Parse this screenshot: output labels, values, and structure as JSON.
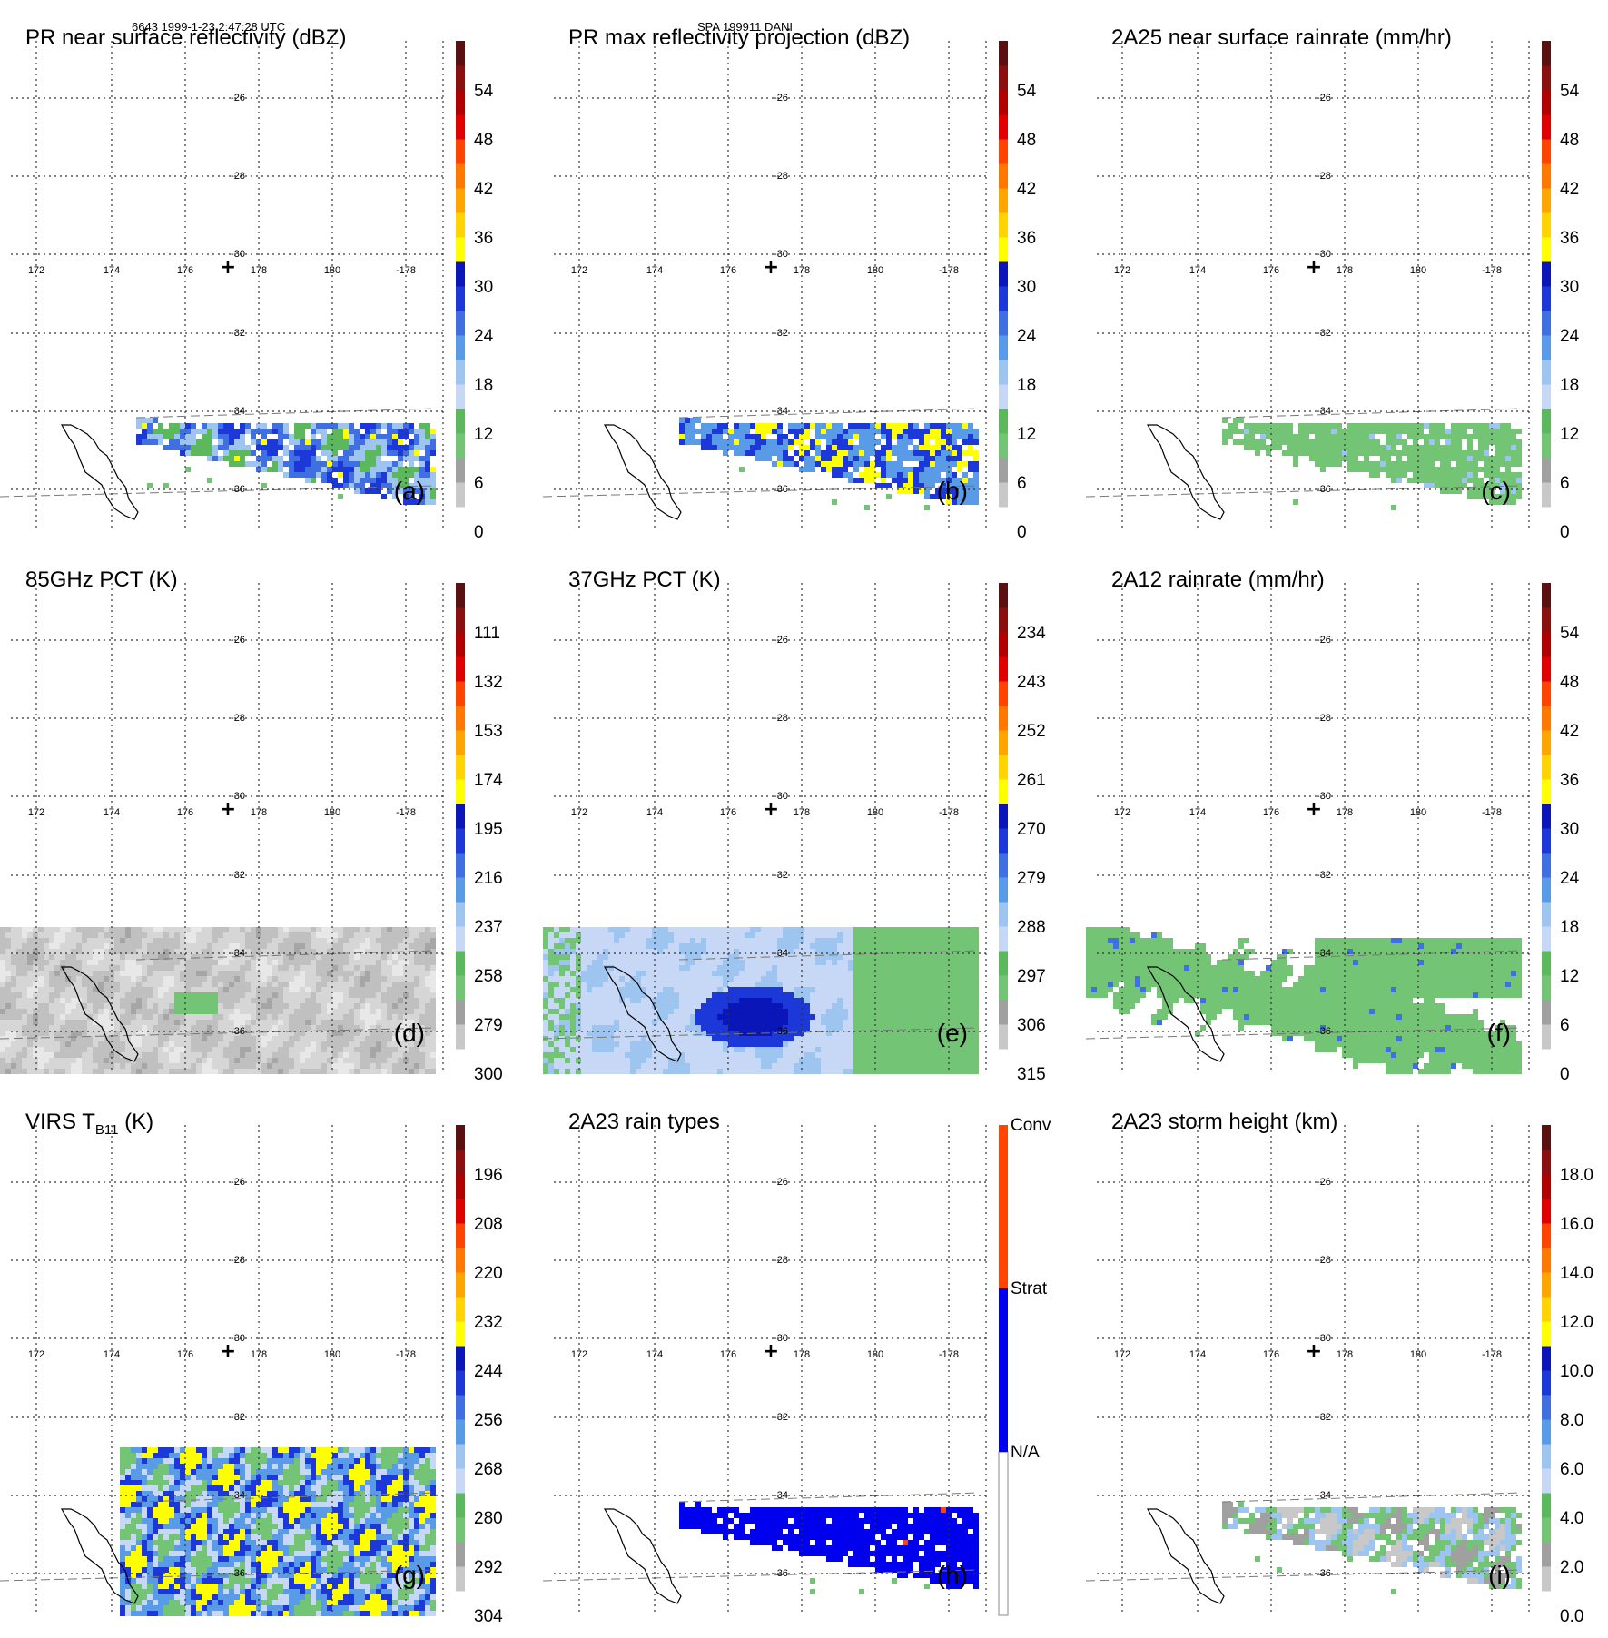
{
  "header": {
    "left": "6643 1999-1-23 2:47:28 UTC",
    "center": "SPA 199911 DANI"
  },
  "chart_data": [
    {
      "type": "heatmap",
      "id": "a",
      "title": "PR near surface reflectivity (dBZ)",
      "panel_label": "(a)",
      "colorbar": {
        "min": 0,
        "max": 60,
        "ticks": [
          0,
          6,
          12,
          18,
          24,
          30,
          36,
          42,
          48,
          54
        ]
      },
      "lat_ticks": [
        "-26",
        "-28",
        "-30",
        "-32",
        "-34",
        "-36"
      ],
      "lon_ticks": [
        "172",
        "174",
        "176",
        "178",
        "180",
        "-178"
      ],
      "pattern": "pr_refl"
    },
    {
      "type": "heatmap",
      "id": "b",
      "title": "PR max reflectivity projection (dBZ)",
      "panel_label": "(b)",
      "colorbar": {
        "min": 0,
        "max": 60,
        "ticks": [
          0,
          6,
          12,
          18,
          24,
          30,
          36,
          42,
          48,
          54
        ]
      },
      "lat_ticks": [
        "-26",
        "-28",
        "-30",
        "-32",
        "-34",
        "-36"
      ],
      "lon_ticks": [
        "172",
        "174",
        "176",
        "178",
        "180",
        "-178"
      ],
      "pattern": "pr_max"
    },
    {
      "type": "heatmap",
      "id": "c",
      "title": "2A25 near surface rainrate (mm/hr)",
      "panel_label": "(c)",
      "colorbar": {
        "min": 0,
        "max": 60,
        "ticks": [
          0,
          6,
          12,
          18,
          24,
          30,
          36,
          42,
          48,
          54
        ]
      },
      "lat_ticks": [
        "-26",
        "-28",
        "-30",
        "-32",
        "-34",
        "-36"
      ],
      "lon_ticks": [
        "172",
        "174",
        "176",
        "178",
        "180",
        "-178"
      ],
      "pattern": "rain25"
    },
    {
      "type": "heatmap",
      "id": "d",
      "title": "85GHz PCT (K)",
      "panel_label": "(d)",
      "colorbar": {
        "min": 90,
        "max": 300,
        "ticks": [
          300,
          279,
          258,
          237,
          216,
          195,
          174,
          153,
          132,
          111
        ]
      },
      "lat_ticks": [
        "-26",
        "-28",
        "-30",
        "-32",
        "-34",
        "-36"
      ],
      "lon_ticks": [
        "172",
        "174",
        "176",
        "178",
        "180",
        "-178"
      ],
      "pattern": "pct85"
    },
    {
      "type": "heatmap",
      "id": "e",
      "title": "37GHz PCT (K)",
      "panel_label": "(e)",
      "colorbar": {
        "min": 225,
        "max": 315,
        "ticks": [
          315,
          306,
          297,
          288,
          279,
          270,
          261,
          252,
          243,
          234
        ]
      },
      "lat_ticks": [
        "-26",
        "-28",
        "-30",
        "-32",
        "-34",
        "-36"
      ],
      "lon_ticks": [
        "172",
        "174",
        "176",
        "178",
        "180",
        "-178"
      ],
      "pattern": "pct37"
    },
    {
      "type": "heatmap",
      "id": "f",
      "title": "2A12 rainrate (mm/hr)",
      "panel_label": "(f)",
      "colorbar": {
        "min": 0,
        "max": 60,
        "ticks": [
          0,
          6,
          12,
          18,
          24,
          30,
          36,
          42,
          48,
          54
        ]
      },
      "lat_ticks": [
        "-26",
        "-28",
        "-30",
        "-32",
        "-34",
        "-36"
      ],
      "lon_ticks": [
        "172",
        "174",
        "176",
        "178",
        "180",
        "-178"
      ],
      "pattern": "rain12"
    },
    {
      "type": "heatmap",
      "id": "g",
      "title": "VIRS T",
      "title_sub": "B11",
      "title_suffix": " (K)",
      "panel_label": "(g)",
      "colorbar": {
        "min": 184,
        "max": 304,
        "ticks": [
          304,
          292,
          280,
          268,
          256,
          244,
          232,
          220,
          208,
          196
        ]
      },
      "lat_ticks": [
        "-26",
        "-28",
        "-30",
        "-32",
        "-34",
        "-36"
      ],
      "lon_ticks": [
        "172",
        "174",
        "176",
        "178",
        "180",
        "-178"
      ],
      "pattern": "virs"
    },
    {
      "type": "heatmap",
      "id": "h",
      "title": "2A23 rain types",
      "panel_label": "(h)",
      "colorbar": {
        "categories": [
          "N/A",
          "Strat",
          "Conv"
        ]
      },
      "lat_ticks": [
        "-26",
        "-28",
        "-30",
        "-32",
        "-34",
        "-36"
      ],
      "lon_ticks": [
        "172",
        "174",
        "176",
        "178",
        "180",
        "-178"
      ],
      "pattern": "raintype"
    },
    {
      "type": "heatmap",
      "id": "i",
      "title": "2A23 storm height (km)",
      "panel_label": "(i)",
      "colorbar": {
        "min": 0,
        "max": 20,
        "ticks": [
          "0.0",
          "2.0",
          "4.0",
          "6.0",
          "8.0",
          "10.0",
          "12.0",
          "14.0",
          "16.0",
          "18.0"
        ]
      },
      "lat_ticks": [
        "-26",
        "-28",
        "-30",
        "-32",
        "-34",
        "-36"
      ],
      "lon_ticks": [
        "172",
        "174",
        "176",
        "178",
        "180",
        "-178"
      ],
      "pattern": "stormh"
    }
  ],
  "colors": {
    "scale": [
      "#ffffff",
      "#c8c8c8",
      "#a0a0a0",
      "#74c476",
      "#5cb85c",
      "#c6d8f5",
      "#9ec5f0",
      "#5a9be8",
      "#3f6fe0",
      "#1c38d8",
      "#0a16b8",
      "#ffff00",
      "#ffd400",
      "#ffa500",
      "#ff7800",
      "#ff4400",
      "#e00000",
      "#b00000",
      "#8a1010",
      "#5a1010"
    ],
    "raintype": {
      "na": "#ffffff",
      "strat": "#0000ee",
      "conv": "#ff4500"
    }
  }
}
